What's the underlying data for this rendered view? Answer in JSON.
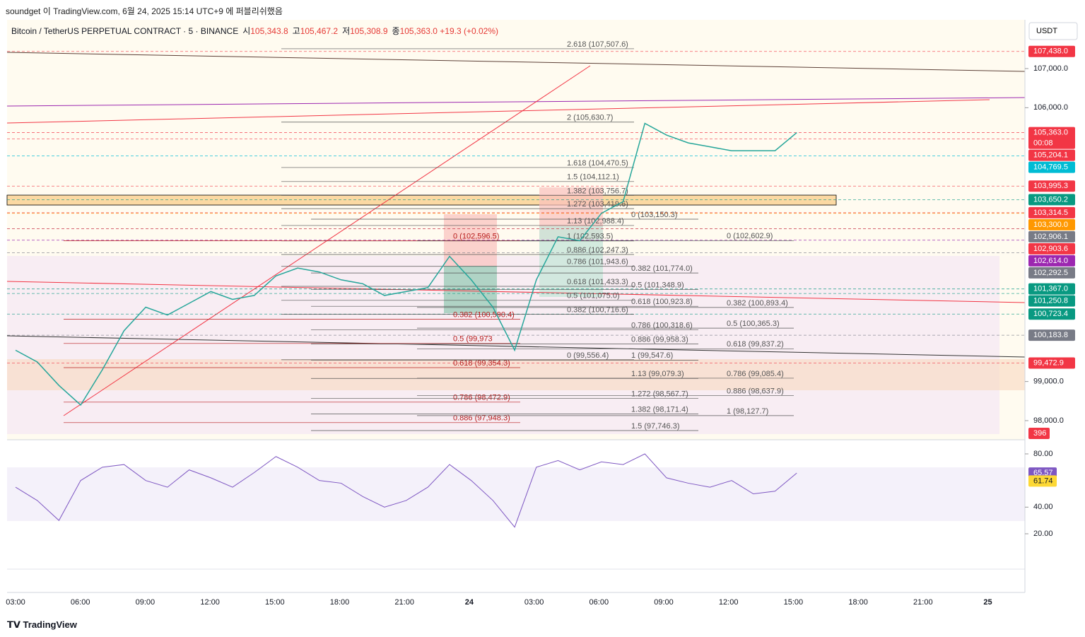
{
  "header": {
    "publish": "soundget 이 TradingView.com, 6월 24, 2025 15:14 UTC+9 에 퍼블리쉬했음",
    "symbol": "Bitcoin / TetherUS PERPETUAL CONTRACT · 5 · BINANCE",
    "ohlc": [
      {
        "key": "시",
        "value": "105,343.8"
      },
      {
        "key": "고",
        "value": "105,467.2"
      },
      {
        "key": "저",
        "value": "105,308.9"
      },
      {
        "key": "종",
        "value": "105,363.0"
      }
    ],
    "change": "+19.3 (+0.02%)",
    "currency": "USDT",
    "countdown": "00:08"
  },
  "price_axis": [
    {
      "value": 107438,
      "label": "107,438.0",
      "color": "#f23645"
    },
    {
      "value": 107000,
      "label": "107,000.0"
    },
    {
      "value": 106000,
      "label": "106,000.0"
    },
    {
      "value": 105363,
      "label": "105,363.0",
      "color": "#f23645"
    },
    {
      "value": 105204.1,
      "label": "105,204.1",
      "color": "#f23645"
    },
    {
      "value": 104769.5,
      "label": "104,769.5",
      "color": "#00bcd4"
    },
    {
      "value": 103995.3,
      "label": "103,995.3",
      "color": "#f23645"
    },
    {
      "value": 103650.2,
      "label": "103,650.2",
      "color": "#089981"
    },
    {
      "value": 103314.5,
      "label": "103,314.5",
      "color": "#f23645"
    },
    {
      "value": 103300,
      "label": "103,300.0",
      "color": "#ff9800"
    },
    {
      "value": 102906.1,
      "label": "102,906.1",
      "color": "#787b86"
    },
    {
      "value": 102903.6,
      "label": "102,903.6",
      "color": "#f23645"
    },
    {
      "value": 102614,
      "label": "102,614.0",
      "color": "#9c27b0"
    },
    {
      "value": 102292.5,
      "label": "102,292.5",
      "color": "#787b86"
    },
    {
      "value": 101367,
      "label": "101,367.0",
      "color": "#089981"
    },
    {
      "value": 101250.8,
      "label": "101,250.8",
      "color": "#089981"
    },
    {
      "value": 100723.4,
      "label": "100,723.4",
      "color": "#089981"
    },
    {
      "value": 100183.8,
      "label": "100,183.8",
      "color": "#787b86"
    },
    {
      "value": 99472.9,
      "label": "99,472.9",
      "color": "#f23645"
    },
    {
      "value": 99000,
      "label": "99,000.0"
    },
    {
      "value": 98000,
      "label": "98,000.0"
    }
  ],
  "volume_label": "396",
  "fib_groups": [
    {
      "levels": [
        {
          "value": 107507.6,
          "label": "2.618 (107,507.6)"
        },
        {
          "value": 105630.7,
          "label": "2 (105,630.7)"
        },
        {
          "value": 104470.5,
          "label": "1.618 (104,470.5)"
        },
        {
          "value": 104112.1,
          "label": "1.5 (104,112.1)"
        },
        {
          "value": 103756.7,
          "label": "1.382 (103,756.7)"
        },
        {
          "value": 103419.6,
          "label": "1.272 (103,419.6)"
        },
        {
          "value": 102988.4,
          "label": "1.13 (102,988.4)"
        },
        {
          "value": 102593.5,
          "label": "1 (102,593.5)"
        },
        {
          "value": 102247.3,
          "label": "0.886 (102,247.3)"
        },
        {
          "value": 101943.6,
          "label": "0.786 (101,943.6)"
        },
        {
          "value": 101433.3,
          "label": "0.618 (101,433.3)"
        },
        {
          "value": 101075,
          "label": "0.5 (101,075.0)"
        },
        {
          "value": 100716.6,
          "label": "0.382 (100,716.6)"
        },
        {
          "value": 99556.4,
          "label": "0 (99,556.4)"
        }
      ]
    },
    {
      "levels": [
        {
          "value": 102596.5,
          "label": "0 (102,596.5)"
        },
        {
          "value": 100590.4,
          "label": "0.382 (100,590.4)"
        },
        {
          "value": 99973,
          "label": "0.5 (99,973"
        },
        {
          "value": 99354.3,
          "label": "0.618 (99,354.3)"
        },
        {
          "value": 98472.9,
          "label": "0.786 (98,472.9)"
        },
        {
          "value": 97948.3,
          "label": "0.886 (97,948.3)"
        }
      ]
    },
    {
      "levels": [
        {
          "value": 103150.3,
          "label": "0 (103,150.3)"
        },
        {
          "value": 101774,
          "label": "0.382 (101,774.0)"
        },
        {
          "value": 101348.9,
          "label": "0.5 (101,348.9)"
        },
        {
          "value": 100923.8,
          "label": "0.618 (100,923.8)"
        },
        {
          "value": 100318.6,
          "label": "0.786 (100,318.6)"
        },
        {
          "value": 99958.3,
          "label": "0.886 (99,958.3)"
        },
        {
          "value": 99547.6,
          "label": "1 (99,547.6)"
        },
        {
          "value": 99079.3,
          "label": "1.13 (99,079.3)"
        },
        {
          "value": 98567.7,
          "label": "1.272 (98,567.7)"
        },
        {
          "value": 98171.4,
          "label": "1.382 (98,171.4)"
        },
        {
          "value": 97746.3,
          "label": "1.5 (97,746.3)"
        }
      ]
    },
    {
      "levels": [
        {
          "value": 102602.9,
          "label": "0 (102,602.9)"
        },
        {
          "value": 100893.4,
          "label": "0.382 (100,893.4)"
        },
        {
          "value": 100365.3,
          "label": "0.5 (100,365.3)"
        },
        {
          "value": 99837.2,
          "label": "0.618 (99,837.2)"
        },
        {
          "value": 99085.4,
          "label": "0.786 (99,085.4)"
        },
        {
          "value": 98637.9,
          "label": "0.886 (98,637.9)"
        },
        {
          "value": 98127.7,
          "label": "1 (98,127.7)"
        }
      ]
    }
  ],
  "price_series": [
    99800,
    99500,
    98900,
    98400,
    99300,
    100300,
    100900,
    100700,
    101000,
    101300,
    101100,
    101200,
    101700,
    101900,
    101800,
    101600,
    101500,
    101200,
    101300,
    101400,
    102200,
    101600,
    100900,
    99800,
    101600,
    102700,
    102600,
    103300,
    103600,
    105600,
    105300,
    105100,
    105000,
    104900,
    104900,
    104900,
    105363
  ],
  "rsi": {
    "axis": [
      {
        "value": 80,
        "label": "80.00"
      },
      {
        "value": 40,
        "label": "40.00"
      },
      {
        "value": 20,
        "label": "20.00"
      }
    ],
    "badges": [
      {
        "value": 65.57,
        "label": "65.57",
        "color": "#7e57c2"
      },
      {
        "value": 61.74,
        "label": "61.74",
        "color": "#fdd835"
      }
    ],
    "series": [
      55,
      45,
      30,
      60,
      70,
      72,
      60,
      55,
      68,
      62,
      55,
      66,
      78,
      70,
      60,
      58,
      48,
      40,
      45,
      55,
      72,
      60,
      45,
      25,
      70,
      75,
      68,
      74,
      72,
      80,
      62,
      58,
      55,
      60,
      50,
      52,
      65.57
    ]
  },
  "time_axis": [
    {
      "label": "03:00"
    },
    {
      "label": "06:00"
    },
    {
      "label": "09:00"
    },
    {
      "label": "12:00"
    },
    {
      "label": "15:00"
    },
    {
      "label": "18:00"
    },
    {
      "label": "21:00"
    },
    {
      "label": "24",
      "bold": true
    },
    {
      "label": "03:00"
    },
    {
      "label": "06:00"
    },
    {
      "label": "09:00"
    },
    {
      "label": "12:00"
    },
    {
      "label": "15:00"
    },
    {
      "label": "18:00"
    },
    {
      "label": "21:00"
    },
    {
      "label": "25",
      "bold": true
    }
  ],
  "footer": "TradingView"
}
